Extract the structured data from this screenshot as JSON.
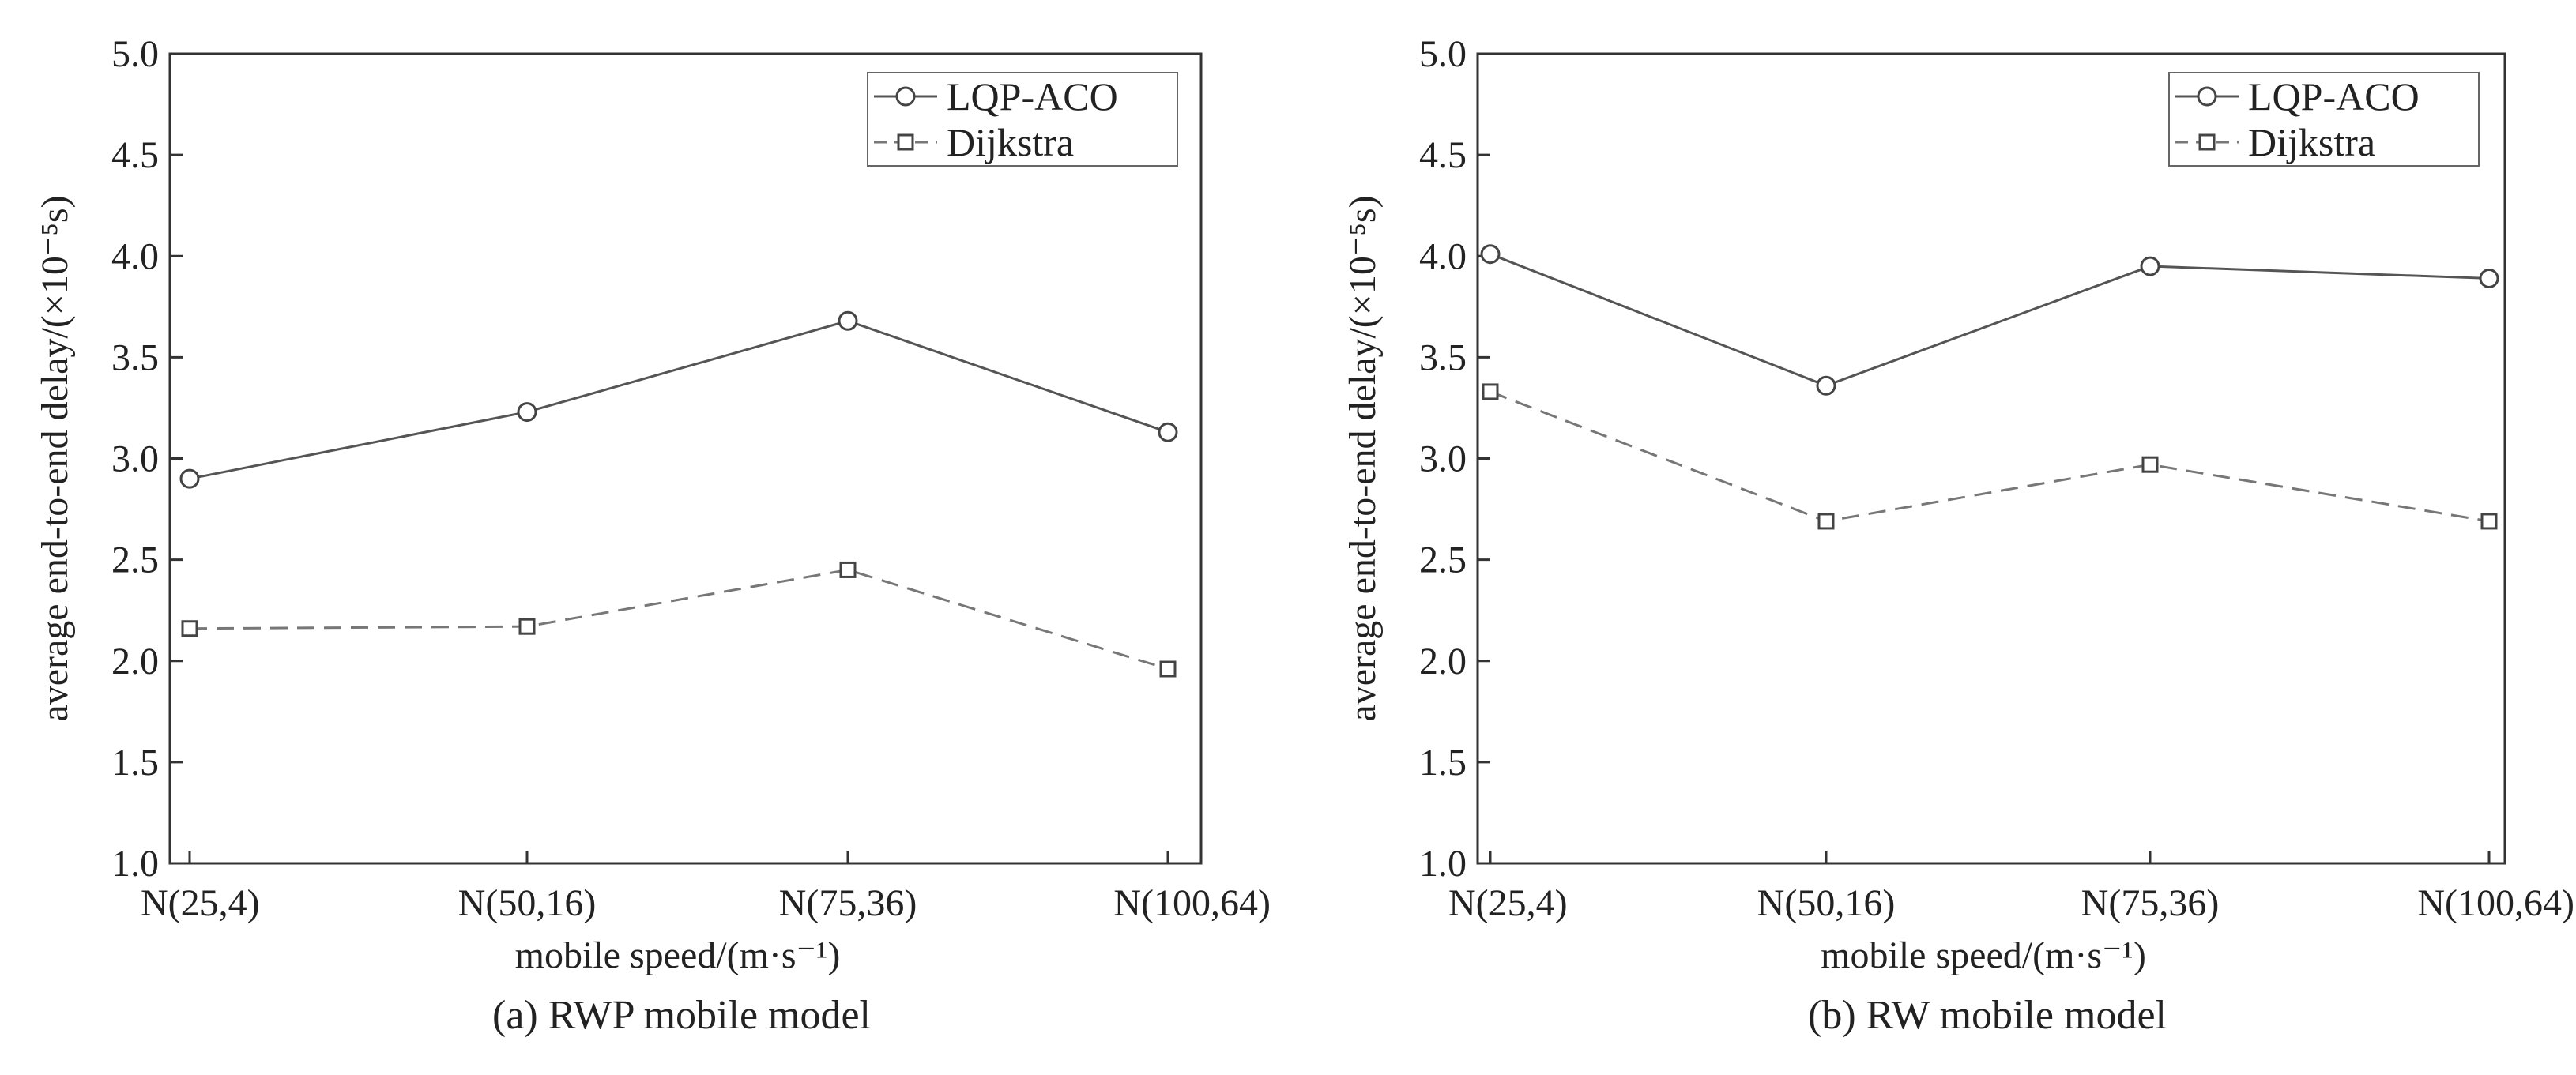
{
  "chart_data": [
    {
      "type": "line",
      "caption": "(a) RWP mobile model",
      "xlabel": "mobile speed/(m·s⁻¹)",
      "ylabel": "average end-to-end delay/(×10⁻⁵s)",
      "categories": [
        "N(25,4)",
        "N(50,16)",
        "N(75,36)",
        "N(100,64)"
      ],
      "ylim": [
        1.0,
        5.0
      ],
      "yticks": [
        "1.0",
        "1.5",
        "2.0",
        "2.5",
        "3.0",
        "3.5",
        "4.0",
        "4.5",
        "5.0"
      ],
      "grid": false,
      "legend_position": "top-right",
      "series": [
        {
          "name": "LQP-ACO",
          "marker": "circle",
          "line": "solid",
          "color": "#555555",
          "values": [
            2.9,
            3.23,
            3.68,
            3.13
          ]
        },
        {
          "name": "Dijkstra",
          "marker": "square",
          "line": "dashed",
          "color": "#777777",
          "values": [
            2.16,
            2.17,
            2.45,
            1.96
          ]
        }
      ]
    },
    {
      "type": "line",
      "caption": "(b) RW mobile model",
      "xlabel": "mobile speed/(m·s⁻¹)",
      "ylabel": "average end-to-end delay/(×10⁻⁵s)",
      "categories": [
        "N(25,4)",
        "N(50,16)",
        "N(75,36)",
        "N(100,64)"
      ],
      "ylim": [
        1.0,
        5.0
      ],
      "yticks": [
        "1.0",
        "1.5",
        "2.0",
        "2.5",
        "3.0",
        "3.5",
        "4.0",
        "4.5",
        "5.0"
      ],
      "grid": false,
      "legend_position": "top-right",
      "series": [
        {
          "name": "LQP-ACO",
          "marker": "circle",
          "line": "solid",
          "color": "#555555",
          "values": [
            4.01,
            3.36,
            3.95,
            3.89
          ]
        },
        {
          "name": "Dijkstra",
          "marker": "square",
          "line": "dashed",
          "color": "#777777",
          "values": [
            3.33,
            2.69,
            2.97,
            2.69
          ]
        }
      ]
    }
  ]
}
